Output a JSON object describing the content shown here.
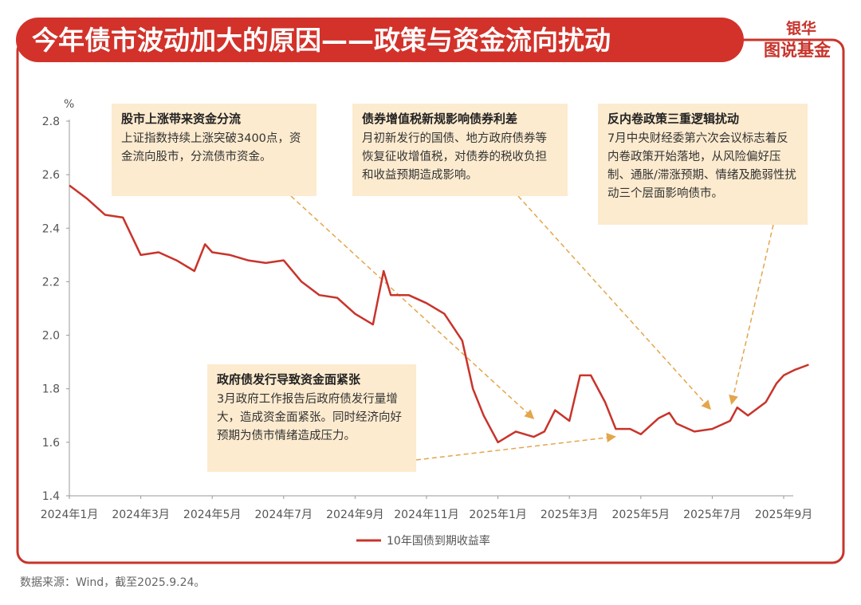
{
  "chart_data": {
    "type": "line",
    "title": "今年债市波动加大的原因——政策与资金流向扰动",
    "logo": [
      "银华",
      "图说基金"
    ],
    "y_unit": "%",
    "source": "数据来源：Wind，截至2025.9.24。",
    "x": [
      0,
      0.5,
      1,
      1.5,
      2,
      2.5,
      3,
      3.5,
      3.8,
      4,
      4.5,
      5,
      5.5,
      6,
      6.5,
      7,
      7.5,
      8,
      8.5,
      8.8,
      9,
      9.5,
      10,
      10.5,
      11,
      11.3,
      11.6,
      12,
      12.5,
      13,
      13.3,
      13.6,
      14,
      14.3,
      14.6,
      15,
      15.3,
      15.7,
      16,
      16.5,
      16.8,
      17,
      17.5,
      18,
      18.5,
      18.7,
      19,
      19.5,
      19.8,
      20,
      20.3,
      20.7
    ],
    "series": [
      {
        "name": "10年国债到期收益率",
        "color": "#c8342b",
        "values": [
          2.56,
          2.51,
          2.45,
          2.44,
          2.3,
          2.31,
          2.28,
          2.24,
          2.34,
          2.31,
          2.3,
          2.28,
          2.27,
          2.28,
          2.2,
          2.15,
          2.14,
          2.08,
          2.04,
          2.24,
          2.15,
          2.15,
          2.12,
          2.08,
          1.98,
          1.8,
          1.7,
          1.6,
          1.64,
          1.62,
          1.64,
          1.72,
          1.68,
          1.85,
          1.85,
          1.75,
          1.65,
          1.65,
          1.63,
          1.69,
          1.71,
          1.67,
          1.64,
          1.65,
          1.68,
          1.73,
          1.7,
          1.75,
          1.82,
          1.85,
          1.87,
          1.89
        ]
      }
    ],
    "xlim": [
      0,
      20.8
    ],
    "xticks": [
      {
        "value": 0,
        "label": "2024年1月"
      },
      {
        "value": 2,
        "label": "2024年3月"
      },
      {
        "value": 4,
        "label": "2024年5月"
      },
      {
        "value": 6,
        "label": "2024年7月"
      },
      {
        "value": 8,
        "label": "2024年9月"
      },
      {
        "value": 10,
        "label": "2024年11月"
      },
      {
        "value": 12,
        "label": "2025年1月"
      },
      {
        "value": 14,
        "label": "2025年3月"
      },
      {
        "value": 16,
        "label": "2025年5月"
      },
      {
        "value": 18,
        "label": "2025年7月"
      },
      {
        "value": 20,
        "label": "2025年9月"
      }
    ],
    "ylim": [
      1.4,
      2.8
    ],
    "yticks": [
      1.4,
      1.6,
      1.8,
      {
        "value": 2,
        "label": "2.0"
      },
      2.2,
      2.4,
      2.6,
      2.8
    ],
    "annotations": [
      {
        "title": "股市上涨带来资金分流",
        "text": "上证指数持续上涨突破3400点，资金流向股市，分流债市资金。"
      },
      {
        "title": "债券增值税新规影响债券利差",
        "text": "月初新发行的国债、地方政府债券等恢复征收增值税，对债券的税收负担和收益预期造成影响。"
      },
      {
        "title": "反内卷政策三重逻辑扰动",
        "text": "7月中央财经委第六次会议标志着反内卷政策开始落地，从风险偏好压制、通胀/滞涨预期、情绪及脆弱性扰动三个层面影响债市。"
      },
      {
        "title": "政府债发行导致资金面紧张",
        "text": "3月政府工作报告后政府债发行量增大，造成资金面紧张。同时经济向好预期为债市情绪造成压力。"
      }
    ]
  }
}
